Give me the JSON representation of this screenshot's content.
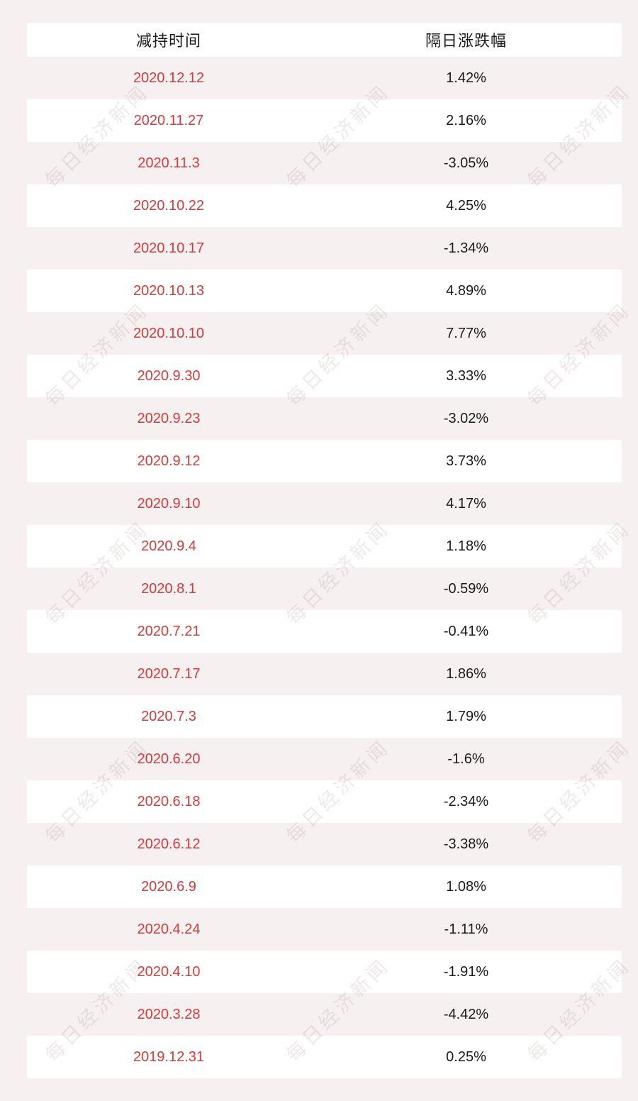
{
  "table": {
    "columns": [
      {
        "label": "减持时间"
      },
      {
        "label": "隔日涨跌幅"
      }
    ],
    "rows": [
      {
        "date": "2020.12.12",
        "change": "1.42%"
      },
      {
        "date": "2020.11.27",
        "change": "2.16%"
      },
      {
        "date": "2020.11.3",
        "change": "-3.05%"
      },
      {
        "date": "2020.10.22",
        "change": "4.25%"
      },
      {
        "date": "2020.10.17",
        "change": "-1.34%"
      },
      {
        "date": "2020.10.13",
        "change": "4.89%"
      },
      {
        "date": "2020.10.10",
        "change": "7.77%"
      },
      {
        "date": "2020.9.30",
        "change": "3.33%"
      },
      {
        "date": "2020.9.23",
        "change": "-3.02%"
      },
      {
        "date": "2020.9.12",
        "change": "3.73%"
      },
      {
        "date": "2020.9.10",
        "change": "4.17%"
      },
      {
        "date": "2020.9.4",
        "change": "1.18%"
      },
      {
        "date": "2020.8.1",
        "change": "-0.59%"
      },
      {
        "date": "2020.7.21",
        "change": "-0.41%"
      },
      {
        "date": "2020.7.17",
        "change": "1.86%"
      },
      {
        "date": "2020.7.3",
        "change": "1.79%"
      },
      {
        "date": "2020.6.20",
        "change": "-1.6%"
      },
      {
        "date": "2020.6.18",
        "change": "-2.34%"
      },
      {
        "date": "2020.6.12",
        "change": "-3.38%"
      },
      {
        "date": "2020.6.9",
        "change": "1.08%"
      },
      {
        "date": "2020.4.24",
        "change": "-1.11%"
      },
      {
        "date": "2020.4.10",
        "change": "-1.91%"
      },
      {
        "date": "2020.3.28",
        "change": "-4.42%"
      },
      {
        "date": "2019.12.31",
        "change": "0.25%"
      }
    ]
  },
  "watermark": {
    "text": "每日经济新闻"
  },
  "colors": {
    "page_background": "#f7f0f1",
    "row_white": "#ffffff",
    "date_red": "#d83a3a",
    "text_black": "#1a1a1a"
  },
  "chart_data": {
    "type": "table",
    "title": "",
    "columns": [
      "减持时间",
      "隔日涨跌幅"
    ],
    "categories": [
      "2020.12.12",
      "2020.11.27",
      "2020.11.3",
      "2020.10.22",
      "2020.10.17",
      "2020.10.13",
      "2020.10.10",
      "2020.9.30",
      "2020.9.23",
      "2020.9.12",
      "2020.9.10",
      "2020.9.4",
      "2020.8.1",
      "2020.7.21",
      "2020.7.17",
      "2020.7.3",
      "2020.6.20",
      "2020.6.18",
      "2020.6.12",
      "2020.6.9",
      "2020.4.24",
      "2020.4.10",
      "2020.3.28",
      "2019.12.31"
    ],
    "values": [
      1.42,
      2.16,
      -3.05,
      4.25,
      -1.34,
      4.89,
      7.77,
      3.33,
      -3.02,
      3.73,
      4.17,
      1.18,
      -0.59,
      -0.41,
      1.86,
      1.79,
      -1.6,
      -2.34,
      -3.38,
      1.08,
      -1.11,
      -1.91,
      -4.42,
      0.25
    ],
    "value_unit": "%"
  }
}
